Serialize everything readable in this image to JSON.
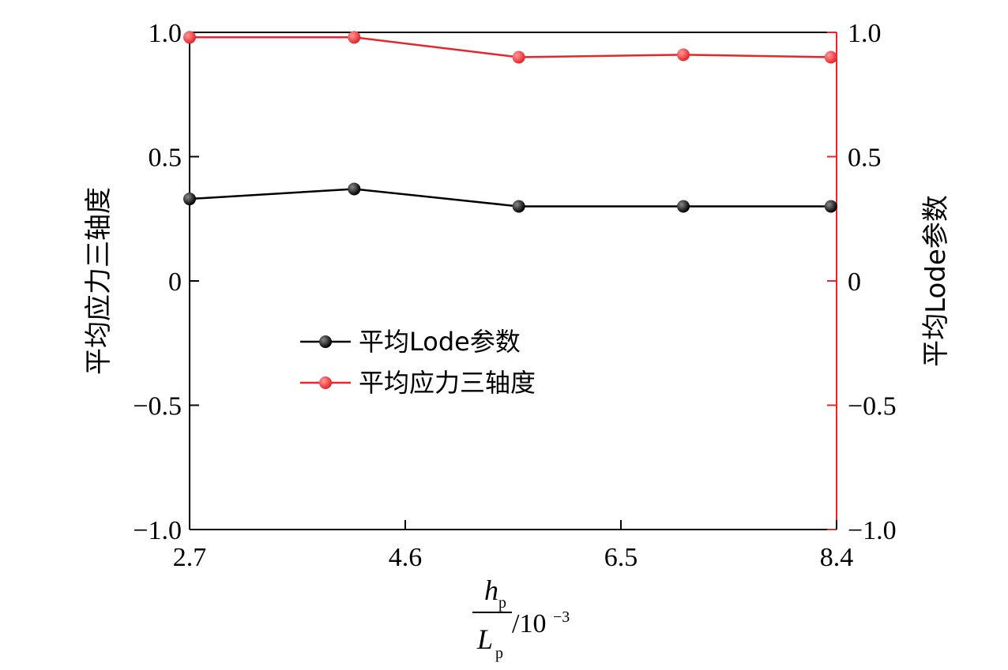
{
  "chart_data": {
    "type": "line",
    "x": [
      2.7,
      4.15,
      5.6,
      7.05,
      8.35
    ],
    "xlim": [
      2.7,
      8.4
    ],
    "x_ticks": [
      "2.7",
      "4.6",
      "6.5",
      "8.4"
    ],
    "x_tick_values": [
      2.7,
      4.6,
      6.5,
      8.4
    ],
    "xlabel": {
      "numerator": "h",
      "numerator_sub": "p",
      "denominator": "L",
      "denominator_sub": "p",
      "suffix": "/10",
      "suffix_exp": "−3"
    },
    "ylim": [
      -1.0,
      1.0
    ],
    "y_ticks": [
      "1.0",
      "0.5",
      "0",
      "−0.5",
      "−1.0"
    ],
    "y_tick_values": [
      1.0,
      0.5,
      0,
      -0.5,
      -1.0
    ],
    "y2_ticks": [
      "1.0",
      "0.5",
      "0",
      "−0.5",
      "−1.0"
    ],
    "ylabel_left": "平均应力三轴度",
    "ylabel_right": "平均Lode参数",
    "series": [
      {
        "name": "平均Lode参数",
        "color": "#000000",
        "axis": "left",
        "values": [
          0.33,
          0.37,
          0.3,
          0.3,
          0.3
        ]
      },
      {
        "name": "平均应力三轴度",
        "color": "#e5262a",
        "axis": "right",
        "values": [
          0.98,
          0.98,
          0.9,
          0.91,
          0.9
        ]
      }
    ],
    "legend_position": "center-left",
    "grid": false
  }
}
